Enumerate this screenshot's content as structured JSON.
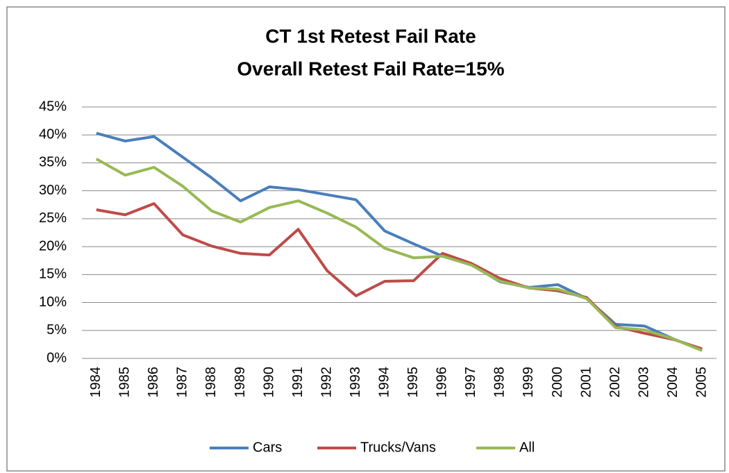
{
  "chart_data": {
    "type": "line",
    "title": "CT 1st Retest Fail Rate",
    "subtitle": "Overall Retest Fail Rate=15%",
    "categories": [
      "1984",
      "1985",
      "1986",
      "1987",
      "1988",
      "1989",
      "1990",
      "1991",
      "1992",
      "1993",
      "1994",
      "1995",
      "1996",
      "1997",
      "1998",
      "1999",
      "2000",
      "2001",
      "2002",
      "2003",
      "2004",
      "2005"
    ],
    "series": [
      {
        "name": "Cars",
        "color": "#4a7ebb",
        "values": [
          40.3,
          38.9,
          39.7,
          36,
          32.3,
          28.2,
          30.7,
          30.2,
          29.3,
          28.4,
          22.8,
          20.5,
          18.3,
          16.8,
          13.7,
          12.7,
          13.2,
          10.7,
          6.1,
          5.8,
          3.5,
          1.5
        ]
      },
      {
        "name": "Trucks/Vans",
        "color": "#be4b48",
        "values": [
          26.6,
          25.7,
          27.7,
          22.1,
          20.1,
          18.8,
          18.5,
          23.1,
          15.7,
          11.2,
          13.8,
          13.9,
          18.8,
          17,
          14.3,
          12.6,
          12.1,
          10.9,
          5.7,
          4.5,
          3.4,
          1.7
        ]
      },
      {
        "name": "All",
        "color": "#98b954",
        "values": [
          35.7,
          32.8,
          34.2,
          30.8,
          26.4,
          24.4,
          27,
          28.2,
          26,
          23.5,
          19.7,
          18,
          18.3,
          16.7,
          13.8,
          12.6,
          12.4,
          10.7,
          5.5,
          5.1,
          3.5,
          1.4
        ]
      }
    ],
    "ylim": [
      0,
      45
    ],
    "yticks": [
      {
        "value": 0,
        "label": "0%"
      },
      {
        "value": 5,
        "label": "5%"
      },
      {
        "value": 10,
        "label": "10%"
      },
      {
        "value": 15,
        "label": "15%"
      },
      {
        "value": 20,
        "label": "20%"
      },
      {
        "value": 25,
        "label": "25%"
      },
      {
        "value": 30,
        "label": "30%"
      },
      {
        "value": 35,
        "label": "35%"
      },
      {
        "value": 40,
        "label": "40%"
      },
      {
        "value": 45,
        "label": "45%"
      }
    ],
    "grid": true,
    "legend": "bottom"
  }
}
